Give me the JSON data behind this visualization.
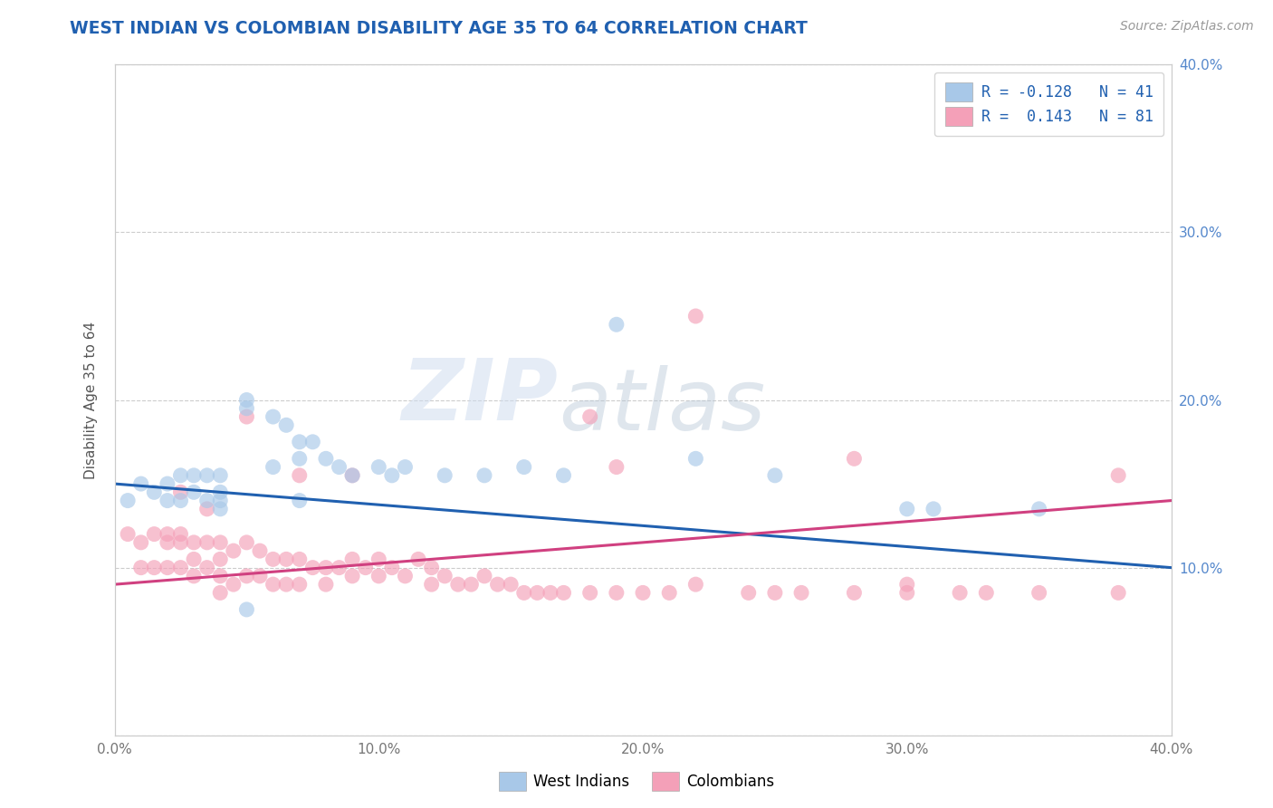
{
  "title": "WEST INDIAN VS COLOMBIAN DISABILITY AGE 35 TO 64 CORRELATION CHART",
  "source": "Source: ZipAtlas.com",
  "ylabel": "Disability Age 35 to 64",
  "xlim": [
    0.0,
    0.4
  ],
  "ylim": [
    0.0,
    0.4
  ],
  "xticks": [
    0.0,
    0.1,
    0.2,
    0.3,
    0.4
  ],
  "yticks": [
    0.0,
    0.1,
    0.2,
    0.3,
    0.4
  ],
  "right_yticks": [
    0.1,
    0.2,
    0.3,
    0.4
  ],
  "legend_label_blue": "R = -0.128   N = 41",
  "legend_label_pink": "R =  0.143   N = 81",
  "blue_line_y0": 0.15,
  "blue_line_y1": 0.1,
  "pink_line_y0": 0.09,
  "pink_line_y1": 0.14,
  "west_indian_x": [
    0.005,
    0.01,
    0.015,
    0.02,
    0.02,
    0.025,
    0.025,
    0.03,
    0.03,
    0.035,
    0.035,
    0.04,
    0.04,
    0.04,
    0.05,
    0.05,
    0.06,
    0.065,
    0.07,
    0.07,
    0.075,
    0.08,
    0.085,
    0.09,
    0.1,
    0.105,
    0.11,
    0.125,
    0.14,
    0.155,
    0.17,
    0.19,
    0.22,
    0.25,
    0.3,
    0.31,
    0.35,
    0.04,
    0.05,
    0.06,
    0.07
  ],
  "west_indian_y": [
    0.14,
    0.15,
    0.145,
    0.15,
    0.14,
    0.155,
    0.14,
    0.145,
    0.155,
    0.14,
    0.155,
    0.155,
    0.145,
    0.14,
    0.2,
    0.195,
    0.19,
    0.185,
    0.175,
    0.165,
    0.175,
    0.165,
    0.16,
    0.155,
    0.16,
    0.155,
    0.16,
    0.155,
    0.155,
    0.16,
    0.155,
    0.245,
    0.165,
    0.155,
    0.135,
    0.135,
    0.135,
    0.135,
    0.075,
    0.16,
    0.14
  ],
  "colombian_x": [
    0.005,
    0.01,
    0.01,
    0.015,
    0.015,
    0.02,
    0.02,
    0.02,
    0.025,
    0.025,
    0.025,
    0.03,
    0.03,
    0.03,
    0.035,
    0.035,
    0.04,
    0.04,
    0.04,
    0.04,
    0.045,
    0.045,
    0.05,
    0.05,
    0.055,
    0.055,
    0.06,
    0.06,
    0.065,
    0.065,
    0.07,
    0.07,
    0.075,
    0.08,
    0.08,
    0.085,
    0.09,
    0.09,
    0.095,
    0.1,
    0.1,
    0.105,
    0.11,
    0.115,
    0.12,
    0.12,
    0.125,
    0.13,
    0.135,
    0.14,
    0.145,
    0.15,
    0.155,
    0.16,
    0.165,
    0.17,
    0.18,
    0.19,
    0.2,
    0.21,
    0.22,
    0.24,
    0.25,
    0.26,
    0.28,
    0.3,
    0.32,
    0.33,
    0.35,
    0.025,
    0.035,
    0.05,
    0.07,
    0.09,
    0.18,
    0.19,
    0.22,
    0.28,
    0.3,
    0.38,
    0.38
  ],
  "colombian_y": [
    0.12,
    0.115,
    0.1,
    0.12,
    0.1,
    0.12,
    0.115,
    0.1,
    0.12,
    0.115,
    0.1,
    0.115,
    0.105,
    0.095,
    0.115,
    0.1,
    0.115,
    0.105,
    0.095,
    0.085,
    0.11,
    0.09,
    0.115,
    0.095,
    0.11,
    0.095,
    0.105,
    0.09,
    0.105,
    0.09,
    0.105,
    0.09,
    0.1,
    0.1,
    0.09,
    0.1,
    0.105,
    0.095,
    0.1,
    0.105,
    0.095,
    0.1,
    0.095,
    0.105,
    0.1,
    0.09,
    0.095,
    0.09,
    0.09,
    0.095,
    0.09,
    0.09,
    0.085,
    0.085,
    0.085,
    0.085,
    0.085,
    0.085,
    0.085,
    0.085,
    0.09,
    0.085,
    0.085,
    0.085,
    0.085,
    0.085,
    0.085,
    0.085,
    0.085,
    0.145,
    0.135,
    0.19,
    0.155,
    0.155,
    0.19,
    0.16,
    0.25,
    0.165,
    0.09,
    0.155,
    0.085
  ],
  "blue_color": "#a8c8e8",
  "pink_color": "#f4a0b8",
  "blue_line_color": "#2060b0",
  "pink_line_color": "#d04080",
  "background_color": "#ffffff",
  "grid_color": "#cccccc",
  "watermark_zip": "ZIP",
  "watermark_atlas": "atlas",
  "title_color": "#2060b0",
  "source_color": "#999999",
  "right_axis_color": "#5588cc"
}
